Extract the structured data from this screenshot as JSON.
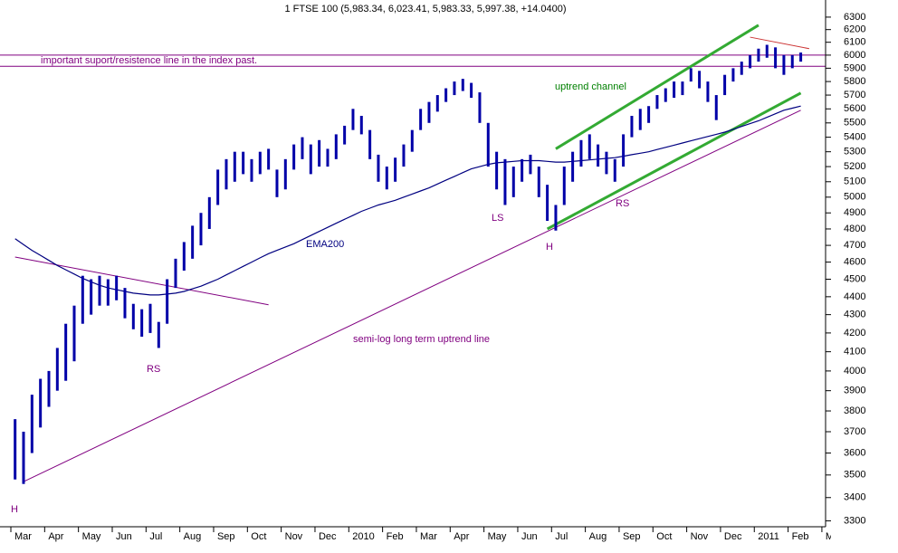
{
  "chart_data": {
    "type": "range-bar",
    "title": "1 FTSE 100 (5,983.34, 6,023.41, 5,983.33, 5,997.38, +14.0400)",
    "log": true,
    "ylim": [
      3275,
      6440
    ],
    "yticks": [
      3300,
      3400,
      3500,
      3600,
      3700,
      3800,
      3900,
      4000,
      4100,
      4200,
      4300,
      4400,
      4500,
      4600,
      4700,
      4800,
      4900,
      5000,
      5100,
      5200,
      5300,
      5400,
      5500,
      5600,
      5700,
      5800,
      5900,
      6000,
      6100,
      6200,
      6300
    ],
    "categories": [
      "Mar",
      null,
      null,
      null,
      "Apr",
      null,
      null,
      null,
      "May",
      null,
      null,
      null,
      "Jun",
      null,
      null,
      null,
      "Jul",
      null,
      null,
      null,
      "Aug",
      null,
      null,
      null,
      "Sep",
      null,
      null,
      null,
      "Oct",
      null,
      null,
      null,
      "Nov",
      null,
      null,
      null,
      "Dec",
      null,
      null,
      null,
      "2010",
      null,
      null,
      null,
      "Feb",
      null,
      null,
      null,
      "Mar",
      null,
      null,
      null,
      "Apr",
      null,
      null,
      null,
      "May",
      null,
      null,
      null,
      "Jun",
      null,
      null,
      null,
      "Jul",
      null,
      null,
      null,
      "Aug",
      null,
      null,
      null,
      "Sep",
      null,
      null,
      null,
      "Oct",
      null,
      null,
      null,
      "Nov",
      null,
      null,
      null,
      "Dec",
      null,
      null,
      null,
      "2011",
      null,
      null,
      null,
      "Feb",
      null,
      null,
      null,
      "Mar",
      null,
      null,
      null
    ],
    "bar_color": "#0000a8",
    "high": [
      3760,
      3700,
      3880,
      3960,
      4000,
      4120,
      4250,
      4350,
      4520,
      4500,
      4520,
      4500,
      4520,
      4450,
      4360,
      4330,
      4360,
      4260,
      4500,
      4620,
      4720,
      4820,
      4900,
      5000,
      5180,
      5250,
      5300,
      5300,
      5250,
      5300,
      5320,
      5180,
      5250,
      5350,
      5400,
      5350,
      5380,
      5320,
      5420,
      5480,
      5600,
      5550,
      5450,
      5280,
      5200,
      5260,
      5350,
      5450,
      5600,
      5650,
      5700,
      5750,
      5800,
      5820,
      5790,
      5720,
      5500,
      5300,
      5250,
      5200,
      5250,
      5280,
      5200,
      5080,
      4950,
      5200,
      5300,
      5380,
      5420,
      5350,
      5300,
      5250,
      5420,
      5550,
      5600,
      5620,
      5700,
      5750,
      5800,
      5800,
      5900,
      5880,
      5800,
      5700,
      5850,
      5900,
      5950,
      6000,
      6050,
      6080,
      6060,
      6000,
      6000,
      6020,
      null,
      null,
      null,
      null,
      null,
      null
    ],
    "low": [
      3480,
      3460,
      3600,
      3720,
      3820,
      3900,
      3950,
      4050,
      4250,
      4300,
      4350,
      4350,
      4380,
      4280,
      4220,
      4180,
      4200,
      4120,
      4250,
      4450,
      4550,
      4620,
      4700,
      4800,
      4950,
      5050,
      5100,
      5150,
      5100,
      5150,
      5180,
      5000,
      5050,
      5180,
      5250,
      5150,
      5200,
      5200,
      5250,
      5350,
      5450,
      5420,
      5250,
      5100,
      5050,
      5100,
      5200,
      5300,
      5450,
      5500,
      5580,
      5650,
      5700,
      5730,
      5680,
      5500,
      5200,
      5050,
      4950,
      5000,
      5100,
      5150,
      5000,
      4850,
      4790,
      4950,
      5100,
      5200,
      5250,
      5200,
      5150,
      5100,
      5200,
      5400,
      5450,
      5500,
      5600,
      5650,
      5680,
      5700,
      5800,
      5750,
      5650,
      5520,
      5700,
      5800,
      5850,
      5900,
      5950,
      5980,
      5900,
      5850,
      5900,
      5950,
      null,
      null,
      null,
      null,
      null,
      null
    ],
    "ema": {
      "color": "#000080",
      "values": [
        4740,
        4705,
        4670,
        4640,
        4610,
        4580,
        4555,
        4530,
        4505,
        4485,
        4465,
        4450,
        4440,
        4430,
        4420,
        4415,
        4410,
        4410,
        4415,
        4420,
        4430,
        4445,
        4460,
        4480,
        4500,
        4525,
        4550,
        4575,
        4600,
        4625,
        4650,
        4670,
        4690,
        4710,
        4735,
        4760,
        4785,
        4810,
        4835,
        4860,
        4885,
        4910,
        4930,
        4950,
        4965,
        4980,
        5000,
        5020,
        5040,
        5060,
        5085,
        5110,
        5135,
        5160,
        5185,
        5200,
        5215,
        5225,
        5230,
        5235,
        5240,
        5240,
        5240,
        5235,
        5230,
        5230,
        5235,
        5240,
        5245,
        5250,
        5255,
        5260,
        5270,
        5280,
        5290,
        5300,
        5315,
        5330,
        5345,
        5360,
        5375,
        5390,
        5405,
        5420,
        5435,
        5455,
        5475,
        5495,
        5515,
        5540,
        5565,
        5590,
        5605,
        5620,
        null,
        null,
        null,
        null,
        null,
        null
      ]
    },
    "hlines": {
      "color": "#800080",
      "values": [
        6000,
        5915
      ]
    },
    "trend_lines": [
      {
        "color": "#800080",
        "start": [
          1,
          3470
        ],
        "end": [
          93,
          5590
        ]
      },
      {
        "color": "#800080",
        "start": [
          0,
          4630
        ],
        "end": [
          30,
          4355
        ]
      },
      {
        "color": "#33aa33",
        "start": [
          64,
          5320
        ],
        "end": [
          88,
          6235
        ]
      },
      {
        "color": "#33aa33",
        "start": [
          63,
          4800
        ],
        "end": [
          93,
          5715
        ]
      },
      {
        "color": "#cc3333",
        "start": [
          87,
          6140
        ],
        "end": [
          94,
          6050
        ]
      }
    ],
    "annotations": [
      {
        "text": "important suport/resistence line in the index past.",
        "color": "#800080"
      },
      {
        "text": "uptrend channel",
        "color": "#008000"
      },
      {
        "text": "LS",
        "color": "#800080"
      },
      {
        "text": "H",
        "color": "#800080"
      },
      {
        "text": "RS",
        "color": "#800080"
      },
      {
        "text": "EMA200",
        "color": "#000080"
      },
      {
        "text": "semi-log long term uptrend line",
        "color": "#800080"
      },
      {
        "text": "RS",
        "color": "#800080"
      },
      {
        "text": "H",
        "color": "#800080"
      }
    ]
  }
}
